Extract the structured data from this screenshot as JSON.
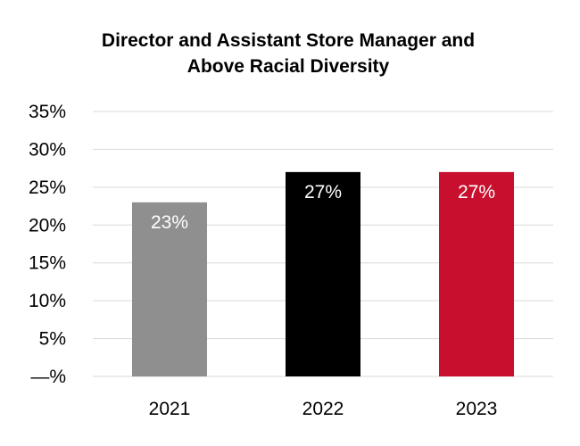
{
  "chart_data": {
    "type": "bar",
    "title": "Director and Assistant Store Manager and Above Racial Diversity",
    "title_lines": [
      "Director and Assistant Store Manager and",
      "Above Racial Diversity"
    ],
    "categories": [
      "2021",
      "2022",
      "2023"
    ],
    "values": [
      23,
      27,
      27
    ],
    "data_labels": [
      "23%",
      "27%",
      "27%"
    ],
    "bar_colors": [
      "#8f8f8f",
      "#000000",
      "#c8102e"
    ],
    "y_ticks": [
      0,
      5,
      10,
      15,
      20,
      25,
      30,
      35
    ],
    "y_tick_labels": [
      "—%",
      "5%",
      "10%",
      "15%",
      "20%",
      "25%",
      "30%",
      "35%"
    ],
    "ylim": [
      0,
      35
    ],
    "xlabel": "",
    "ylabel": "",
    "grid": true,
    "legend": "none"
  }
}
